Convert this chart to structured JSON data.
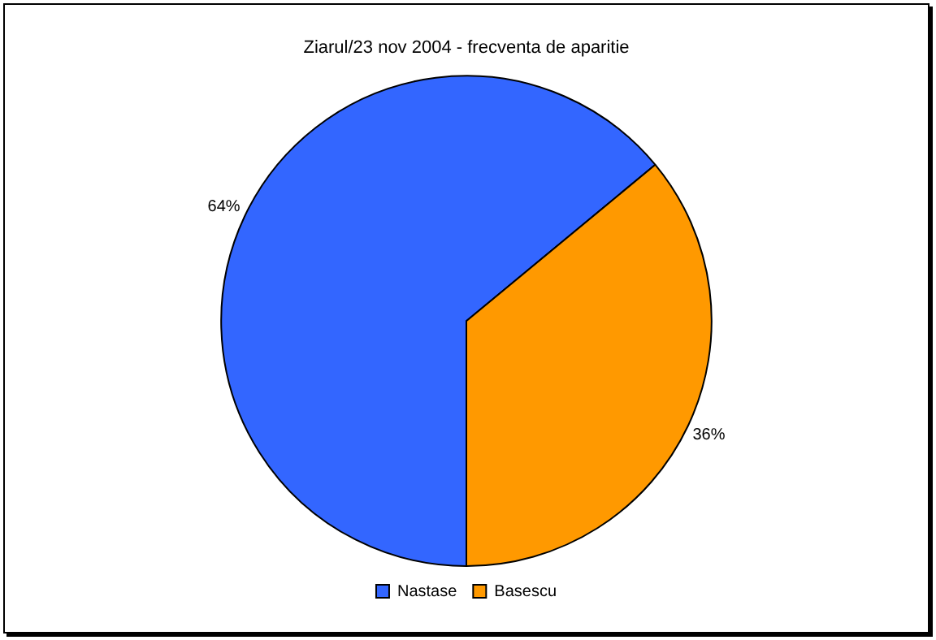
{
  "chart_data": {
    "type": "pie",
    "title": "Ziarul/23 nov 2004 - frecventa de aparitie",
    "categories": [
      "Nastase",
      "Basescu"
    ],
    "values": [
      64,
      36
    ],
    "colors": [
      "#3366ff",
      "#ff9900"
    ],
    "value_labels": [
      "64%",
      "36%"
    ],
    "legend": "bottom"
  }
}
